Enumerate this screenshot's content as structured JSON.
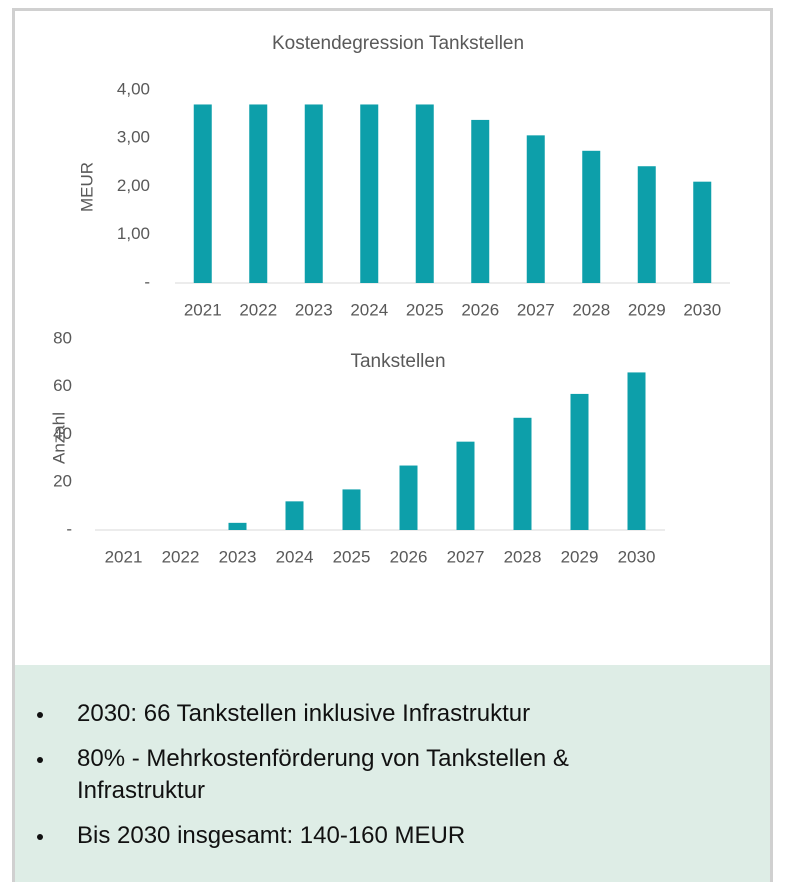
{
  "chart_data": [
    {
      "type": "bar",
      "title": "Kostendegression Tankstellen",
      "y_label": "MEUR",
      "categories": [
        "2021",
        "2022",
        "2023",
        "2024",
        "2025",
        "2026",
        "2027",
        "2028",
        "2029",
        "2030"
      ],
      "values": [
        3.7,
        3.7,
        3.7,
        3.7,
        3.7,
        3.38,
        3.06,
        2.74,
        2.42,
        2.1
      ],
      "color": "#0d9faa",
      "ylim": [
        0,
        4
      ],
      "yticks": [
        {
          "value": 0,
          "label": "-"
        },
        {
          "value": 1,
          "label": "1,00"
        },
        {
          "value": 2,
          "label": "2,00"
        },
        {
          "value": 3,
          "label": "3,00"
        },
        {
          "value": 4,
          "label": "4,00"
        }
      ]
    },
    {
      "type": "bar",
      "title": "Tankstellen",
      "y_label": "Anzahl",
      "categories": [
        "2021",
        "2022",
        "2023",
        "2024",
        "2025",
        "2026",
        "2027",
        "2028",
        "2029",
        "2030"
      ],
      "values": [
        0,
        0,
        3,
        12,
        17,
        27,
        37,
        47,
        57,
        66
      ],
      "color": "#0d9faa",
      "ylim": [
        0,
        80
      ],
      "yticks": [
        {
          "value": 0,
          "label": "-"
        },
        20,
        40,
        60,
        80
      ]
    }
  ],
  "bullets": [
    "2030: 66 Tankstellen inklusive Infrastruktur",
    "80% - Mehrkostenförderung von Tankstellen & Infrastruktur",
    "Bis 2030 insgesamt: 140-160 MEUR"
  ]
}
